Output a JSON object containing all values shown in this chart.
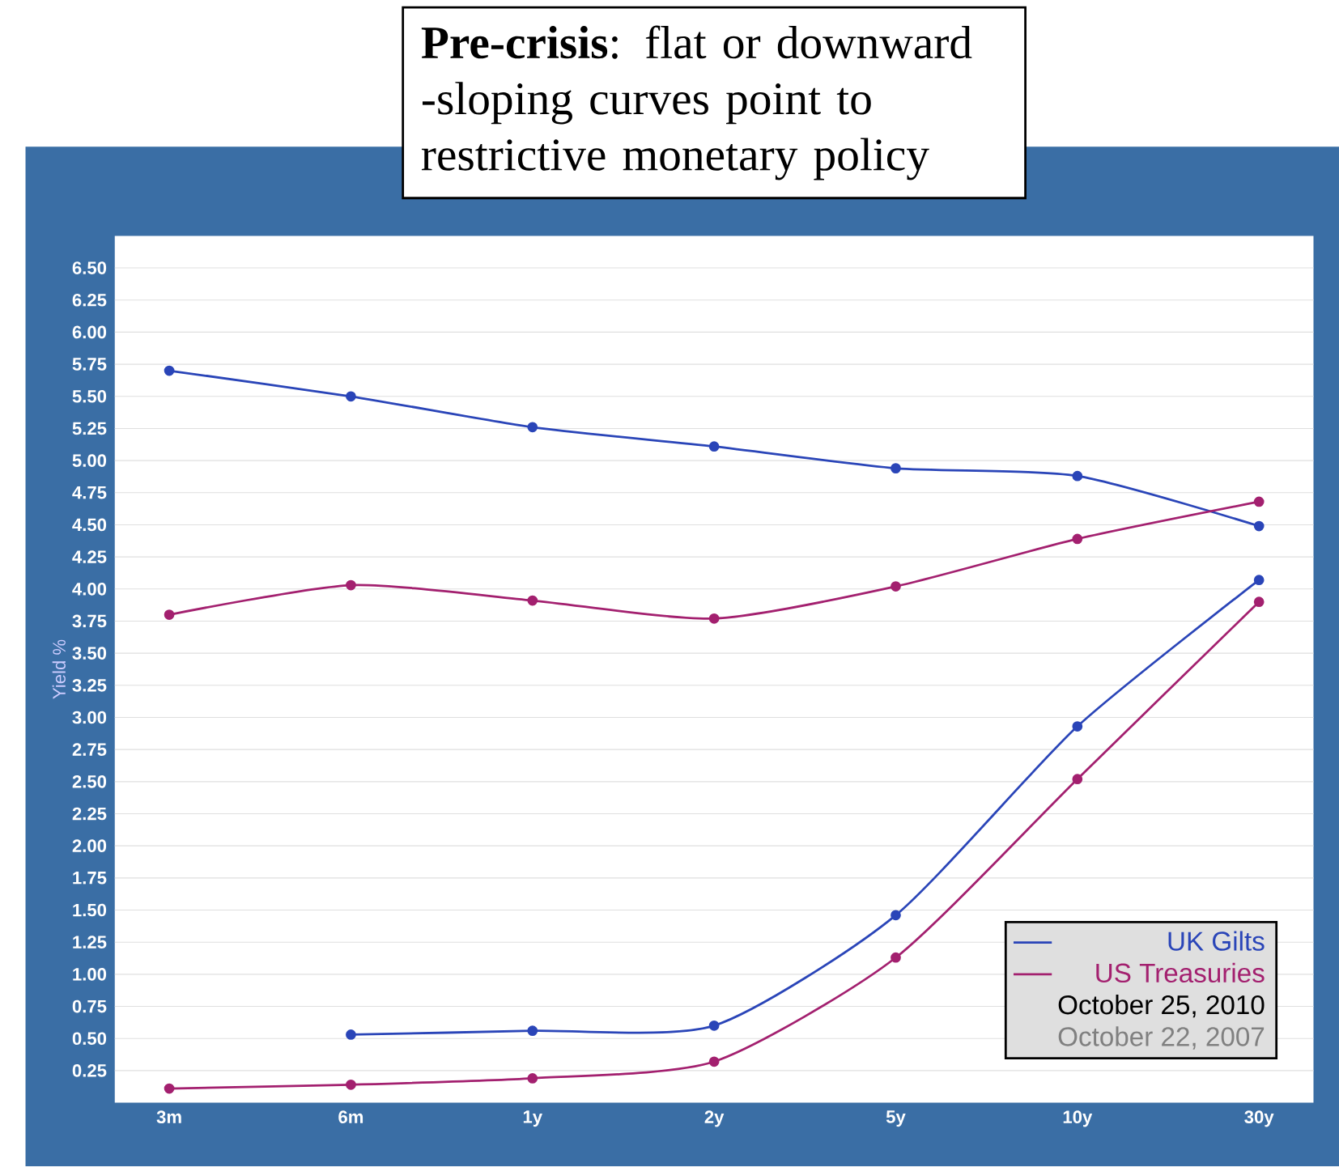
{
  "chart_data": {
    "type": "line",
    "ylabel": "Yield %",
    "categories": [
      "3m",
      "6m",
      "1y",
      "2y",
      "5y",
      "10y",
      "30y"
    ],
    "series": [
      {
        "name": "UK Gilts",
        "color": "#2a45b8",
        "values": [
          null,
          0.53,
          0.56,
          0.6,
          1.46,
          2.93,
          4.07
        ]
      },
      {
        "name": "US Treasuries",
        "color": "#a3206f",
        "values": [
          0.11,
          0.14,
          0.19,
          0.32,
          1.13,
          2.52,
          3.9
        ]
      },
      {
        "color": "#2a45b8",
        "values": [
          5.7,
          5.5,
          5.26,
          5.11,
          4.94,
          4.88,
          4.49
        ]
      },
      {
        "color": "#a3206f",
        "values": [
          3.8,
          4.03,
          3.91,
          3.77,
          4.02,
          4.39,
          4.68
        ]
      }
    ],
    "ylim": [
      0,
      6.75
    ],
    "yticks": [
      {
        "value": 0.25,
        "label": "0.25"
      },
      {
        "value": 0.5,
        "label": "0.50"
      },
      {
        "value": 0.75,
        "label": "0.75"
      },
      {
        "value": 1,
        "label": "1.00"
      },
      {
        "value": 1.25,
        "label": "1.25"
      },
      {
        "value": 1.5,
        "label": "1.50"
      },
      {
        "value": 1.75,
        "label": "1.75"
      },
      {
        "value": 2,
        "label": "2.00"
      },
      {
        "value": 2.25,
        "label": "2.25"
      },
      {
        "value": 2.5,
        "label": "2.50"
      },
      {
        "value": 2.75,
        "label": "2.75"
      },
      {
        "value": 3,
        "label": "3.00"
      },
      {
        "value": 3.25,
        "label": "3.25"
      },
      {
        "value": 3.5,
        "label": "3.50"
      },
      {
        "value": 3.75,
        "label": "3.75"
      },
      {
        "value": 4,
        "label": "4.00"
      },
      {
        "value": 4.25,
        "label": "4.25"
      },
      {
        "value": 4.5,
        "label": "4.50"
      },
      {
        "value": 4.75,
        "label": "4.75"
      },
      {
        "value": 5,
        "label": "5.00"
      },
      {
        "value": 5.25,
        "label": "5.25"
      },
      {
        "value": 5.5,
        "label": "5.50"
      },
      {
        "value": 5.75,
        "label": "5.75"
      },
      {
        "value": 6,
        "label": "6.00"
      },
      {
        "value": 6.25,
        "label": "6.25"
      },
      {
        "value": 6.5,
        "label": "6.50"
      }
    ],
    "grid": "y",
    "marker": "circle",
    "line_style": "solid",
    "legend": "bottom right",
    "annotations": [
      "**Pre-crisis**: flat or downward -sloping curves point to restrictive monetary policy",
      "October 25, 2010",
      "October 22, 2007"
    ]
  }
}
